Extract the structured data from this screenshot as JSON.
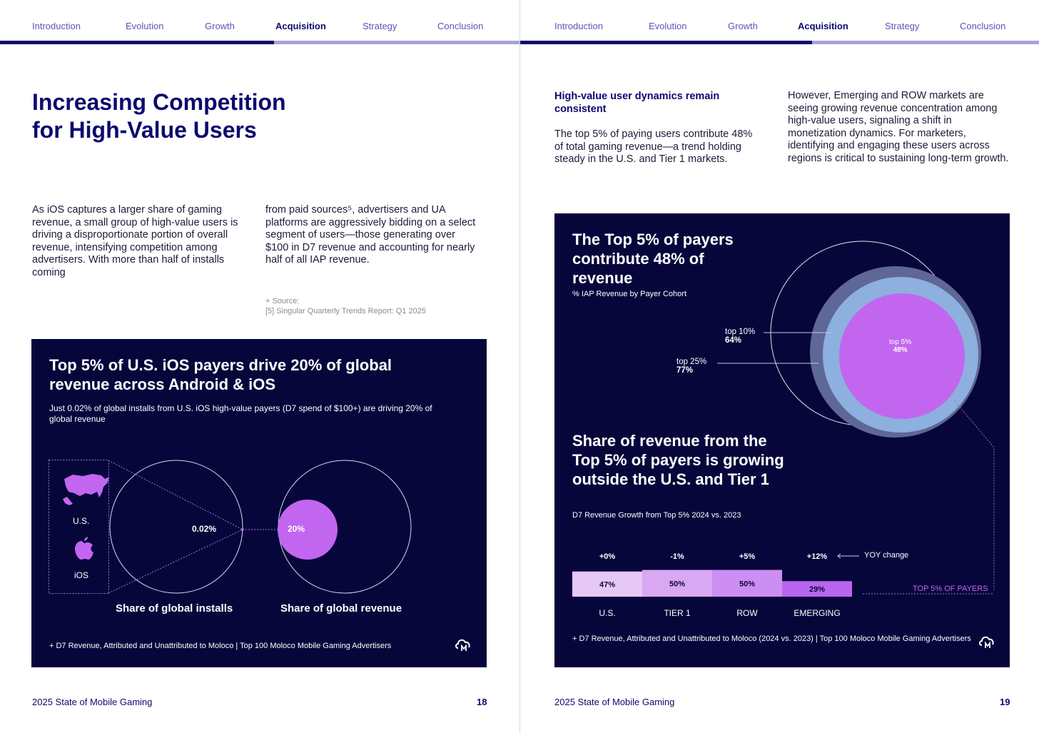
{
  "nav": {
    "items": [
      "Introduction",
      "Evolution",
      "Growth",
      "Acquisition",
      "Strategy",
      "Conclusion"
    ],
    "active": "Acquisition"
  },
  "page18": {
    "title_line1": "Increasing Competition",
    "title_line2": "for High-Value Users",
    "col1": "As iOS captures a larger share of gaming revenue, a small group of high-value users is driving a disproportionate portion of overall revenue, intensifying competition among advertisers. With more than half of installs coming",
    "col2": "from paid sources⁵, advertisers and UA platforms are aggressively bidding on a select segment of users—those generating over $100 in D7 revenue and accounting for nearly half of all IAP revenue.",
    "source_label": "+ Source:",
    "source_text": "[5] Singular Quarterly Trends Report: Q1 2025",
    "card": {
      "title": "Top 5% of U.S. iOS payers drive 20% of global revenue across Android & iOS",
      "subtitle": "Just 0.02% of global installs from U.S. iOS high-value payers (D7 spend of $100+) are driving 20% of global revenue",
      "us_label": "U.S.",
      "ios_label": "iOS",
      "installs_value": "0.02%",
      "revenue_value": "20%",
      "installs_caption": "Share of global installs",
      "revenue_caption": "Share of global revenue",
      "footnote": "+ D7 Revenue, Attributed and Unattributed to Moloco | Top 100 Moloco Mobile Gaming Advertisers"
    },
    "footer_title": "2025 State of Mobile Gaming",
    "page_number": "18"
  },
  "page19": {
    "heading": "High-value user dynamics remain consistent",
    "col1": "The top 5% of paying users contribute 48% of total gaming revenue—a trend holding steady in the U.S. and Tier 1 markets.",
    "col2": "However, Emerging and ROW markets are seeing growing revenue concentration among high-value users, signaling a shift in monetization dynamics. For marketers, identifying and engaging these users across regions is critical to sustaining long-term growth.",
    "card": {
      "title1": "The Top 5% of payers contribute 48% of revenue",
      "sub1": "% IAP Revenue by Payer Cohort",
      "title2": "Share of revenue from the Top 5% of payers is growing outside the U.S. and Tier 1",
      "sub2": "D7 Revenue Growth from Top 5% 2024 vs. 2023",
      "yoy_label": "YOY change",
      "top5_payers_label": "TOP 5% OF PAYERS",
      "footnote": "+ D7 Revenue, Attributed and Unattributed to Moloco (2024 vs. 2023) | Top 100 Moloco Mobile Gaming Advertisers"
    },
    "footer_title": "2025 State of Mobile Gaming",
    "page_number": "19"
  },
  "chart_data": [
    {
      "type": "pie",
      "title": "Top 5% of U.S. iOS payers drive 20% of global revenue across Android & iOS",
      "categories": [
        "Share of global installs",
        "Share of global revenue"
      ],
      "values": [
        0.02,
        20
      ],
      "unit": "%"
    },
    {
      "type": "pie",
      "title": "The Top 5% of payers contribute 48% of revenue",
      "subtitle": "% IAP Revenue by Payer Cohort",
      "categories": [
        "top 5%",
        "top 10%",
        "top 25%"
      ],
      "labels": [
        "48%",
        "64%",
        "77%"
      ],
      "values": [
        48,
        64,
        77
      ]
    },
    {
      "type": "bar",
      "title": "Share of revenue from the Top 5% of payers is growing outside the U.S. and Tier 1",
      "subtitle": "D7 Revenue Growth from Top 5% 2024 vs. 2023",
      "categories": [
        "U.S.",
        "TIER 1",
        "ROW",
        "EMERGING"
      ],
      "values": [
        47,
        50,
        50,
        29
      ],
      "labels": [
        "47%",
        "50%",
        "50%",
        "29%"
      ],
      "yoy_change": [
        "+0%",
        "-1%",
        "+5%",
        "+12%"
      ],
      "colors": [
        "#e6c8f7",
        "#d8a8f3",
        "#cc8ef2",
        "#b866ee"
      ]
    }
  ]
}
